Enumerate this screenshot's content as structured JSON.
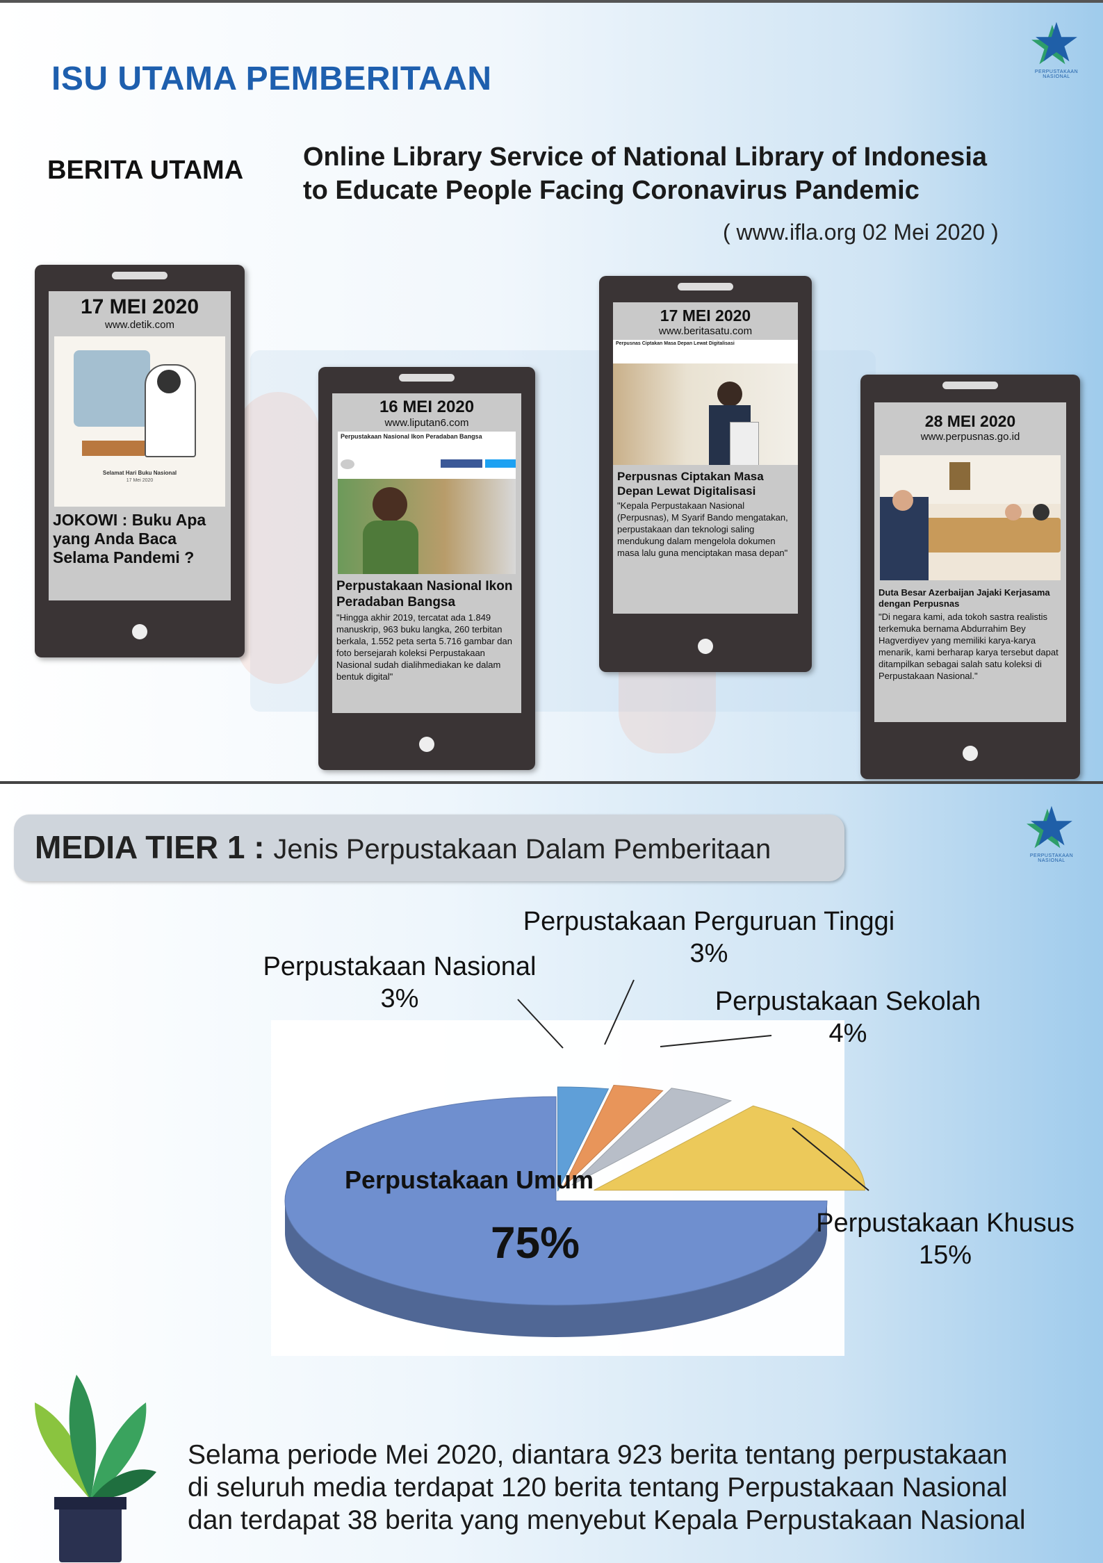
{
  "slide1": {
    "title": "ISU UTAMA PEMBERITAAN",
    "section_label": "BERITA UTAMA",
    "headline_line1": "Online Library Service of National Library of Indonesia",
    "headline_line2": "to Educate People Facing Coronavirus Pandemic",
    "source": "( www.ifla.org 02 Mei 2020 )",
    "logo_icon": "star-logo-icon",
    "phones": [
      {
        "date": "17 MEI 2020",
        "site": "www.detik.com",
        "image_caption_line1": "Selamat Hari Buku Nasional",
        "image_caption_line2": "17 Mei 2020",
        "caption": "JOKOWI : Buku Apa yang Anda Baca Selama Pandemi ?",
        "body": ""
      },
      {
        "date": "16 MEI 2020",
        "site": "www.liputan6.com",
        "article_head": "Perpustakaan Nasional Ikon Peradaban Bangsa",
        "caption": "Perpustakaan Nasional Ikon Peradaban Bangsa",
        "body": "\"Hingga akhir 2019, tercatat ada 1.849 manuskrip, 963 buku langka, 260 terbitan berkala, 1.552 peta serta 5.716 gambar dan foto bersejarah koleksi Perpustakaan Nasional sudah dialihmediakan ke dalam bentuk digital\""
      },
      {
        "date": "17 MEI 2020",
        "site": "www.beritasatu.com",
        "article_head": "Perpusnas Ciptakan Masa Depan Lewat Digitalisasi",
        "caption": "Perpusnas Ciptakan Masa Depan Lewat Digitalisasi",
        "body": "\"Kepala Perpustakaan Nasional (Perpusnas), M Syarif Bando mengatakan, perpustakaan dan teknologi saling mendukung dalam mengelola dokumen masa lalu guna menciptakan masa depan\""
      },
      {
        "date": "28 MEI 2020",
        "site": "www.perpusnas.go.id",
        "caption": "Duta Besar Azerbaijan Jajaki Kerjasama dengan Perpusnas",
        "body": "\"Di negara kami, ada tokoh sastra realistis terkemuka bernama Abdurrahim Bey Hagverdiyev yang memiliki karya-karya menarik, kami berharap karya tersebut dapat ditampilkan sebagai salah satu koleksi di Perpustakaan Nasional.\""
      }
    ]
  },
  "slide2": {
    "title_bold": "MEDIA TIER 1 :",
    "title_rest": "Jenis Perpustakaan Dalam Pemberitaan",
    "logo_icon": "star-logo-icon",
    "footer_line1": "Selama periode Mei 2020, diantara 923 berita tentang perpustakaan",
    "footer_line2": "di seluruh media terdapat 120 berita tentang Perpustakaan Nasional",
    "footer_line3": "dan terdapat 38 berita yang menyebut Kepala Perpustakaan Nasional",
    "plant_icon": "plant-icon"
  },
  "chart_data": {
    "type": "pie",
    "title": "",
    "categories": [
      "Perpustakaan Umum",
      "Perpustakaan Nasional",
      "Perpustakaan Perguruan Tinggi",
      "Perpustakaan Sekolah",
      "Perpustakaan Khusus"
    ],
    "values": [
      75,
      3,
      3,
      4,
      15
    ],
    "value_labels": [
      "75%",
      "3%",
      "3%",
      "4%",
      "15%"
    ],
    "colors": [
      "#6f8fcf",
      "#5f9fd8",
      "#e8955a",
      "#b8bec8",
      "#ecc95a"
    ],
    "style": "3D exploded pie"
  }
}
